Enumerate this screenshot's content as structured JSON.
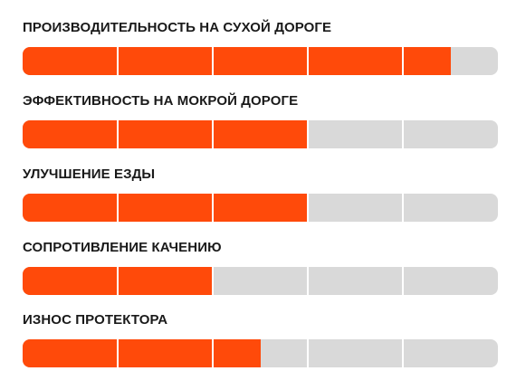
{
  "colors": {
    "fill": "#ff4a0a",
    "track": "#d9d9d9",
    "divider": "#ffffff",
    "text": "#1a1a1a"
  },
  "ratings": [
    {
      "label": "ПРОИЗВОДИТЕЛЬНОСТЬ НА СУХОЙ ДОРОГЕ",
      "value": 4.5,
      "max": 5
    },
    {
      "label": "ЭФФЕКТИВНОСТЬ НА МОКРОЙ ДОРОГЕ",
      "value": 3,
      "max": 5
    },
    {
      "label": "УЛУЧШЕНИЕ ЕЗДЫ",
      "value": 3,
      "max": 5
    },
    {
      "label": "СОПРОТИВЛЕНИЕ КАЧЕНИЮ",
      "value": 2,
      "max": 5
    },
    {
      "label": "ИЗНОС ПРОТЕКТОРА",
      "value": 2.5,
      "max": 5
    }
  ]
}
